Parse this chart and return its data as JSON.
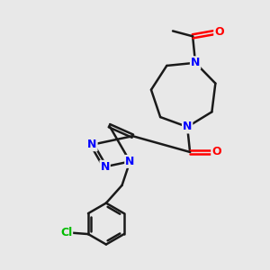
{
  "background_color": "#e8e8e8",
  "bond_color": "#1a1a1a",
  "atom_colors": {
    "N": "#0000ff",
    "O": "#ff0000",
    "Cl": "#00bb00",
    "C": "#1a1a1a"
  },
  "line_width": 1.8,
  "font_size": 9,
  "figsize": [
    3.0,
    3.0
  ],
  "dpi": 100
}
